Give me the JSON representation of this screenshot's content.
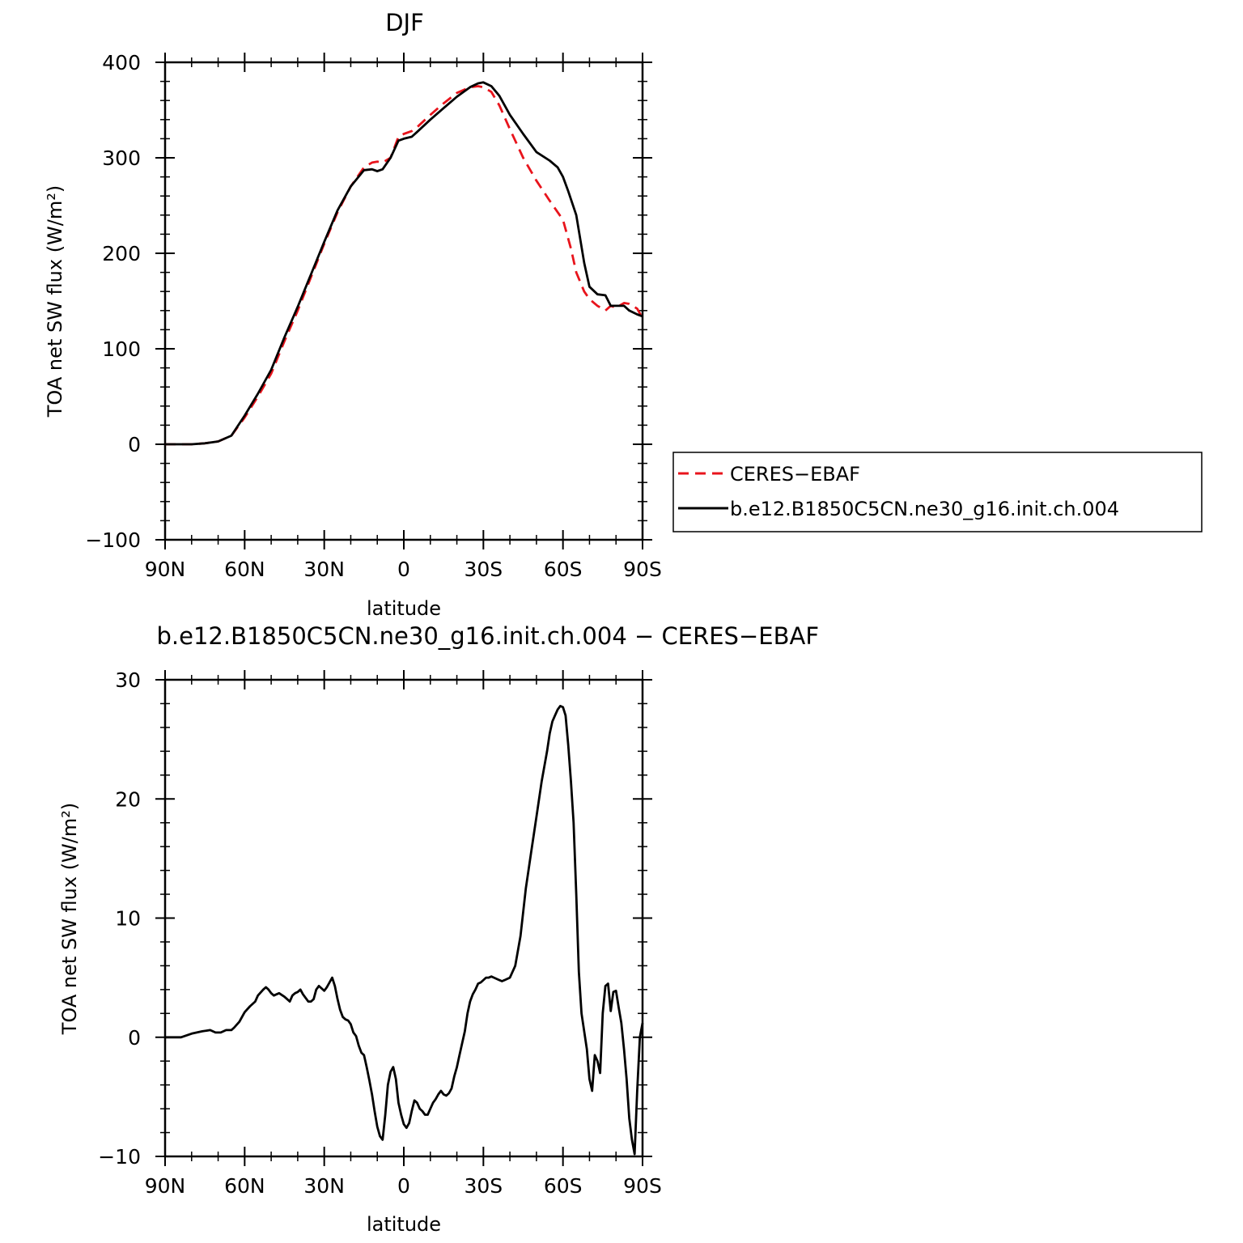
{
  "chart_data": [
    {
      "type": "line",
      "title": "DJF",
      "xlabel": "latitude",
      "ylabel": "TOA net SW flux (W/m²)",
      "xlim": [
        90,
        -90
      ],
      "ylim": [
        -100,
        400
      ],
      "xticks": [
        90,
        60,
        30,
        0,
        -30,
        -60,
        -90
      ],
      "xtick_labels": [
        "90N",
        "60N",
        "30N",
        "0",
        "30S",
        "60S",
        "90S"
      ],
      "yticks": [
        -100,
        0,
        100,
        200,
        300,
        400
      ],
      "ytick_labels": [
        "−100",
        "0",
        "100",
        "200",
        "300",
        "400"
      ],
      "legend_position": "right",
      "series": [
        {
          "name": "CERES−EBAF",
          "color": "#e8141c",
          "dash": "dashed",
          "x": [
            90,
            85,
            80,
            75,
            70,
            65,
            60,
            55,
            50,
            45,
            40,
            35,
            30,
            25,
            20,
            15,
            12,
            10,
            8,
            5,
            2,
            0,
            -3,
            -5,
            -10,
            -15,
            -20,
            -25,
            -28,
            -30,
            -33,
            -36,
            -40,
            -45,
            -50,
            -55,
            -60,
            -63,
            -65,
            -68,
            -70,
            -73,
            -76,
            -78,
            -80,
            -83,
            -85,
            -88,
            -90
          ],
          "y": [
            0,
            0,
            0,
            1,
            3,
            9,
            28,
            50,
            74,
            108,
            140,
            175,
            210,
            243,
            270,
            290,
            295,
            296,
            295,
            300,
            322,
            325,
            328,
            332,
            345,
            357,
            368,
            374,
            375,
            374,
            369,
            355,
            330,
            300,
            276,
            255,
            235,
            205,
            180,
            160,
            152,
            145,
            140,
            145,
            143,
            148,
            147,
            142,
            132
          ]
        },
        {
          "name": "b.e12.B1850C5CN.ne30_g16.init.ch.004",
          "color": "#000000",
          "dash": "solid",
          "x": [
            90,
            85,
            80,
            75,
            70,
            65,
            60,
            55,
            50,
            45,
            40,
            35,
            30,
            25,
            20,
            15,
            12,
            10,
            8,
            5,
            2,
            0,
            -3,
            -5,
            -10,
            -15,
            -20,
            -25,
            -28,
            -30,
            -33,
            -36,
            -40,
            -45,
            -50,
            -55,
            -58,
            -60,
            -62,
            -65,
            -68,
            -70,
            -73,
            -76,
            -78,
            -80,
            -83,
            -85,
            -88,
            -90
          ],
          "y": [
            0,
            0,
            0,
            1,
            3,
            9,
            30,
            53,
            78,
            112,
            144,
            178,
            212,
            245,
            270,
            287,
            288,
            286,
            288,
            300,
            318,
            320,
            322,
            327,
            340,
            352,
            364,
            374,
            378,
            379,
            375,
            365,
            345,
            325,
            306,
            297,
            290,
            280,
            265,
            240,
            190,
            165,
            157,
            156,
            145,
            145,
            145,
            140,
            136,
            134
          ]
        }
      ]
    },
    {
      "type": "line",
      "title": "b.e12.B1850C5CN.ne30_g16.init.ch.004 − CERES−EBAF",
      "xlabel": "latitude",
      "ylabel": "TOA net SW flux (W/m²)",
      "xlim": [
        90,
        -90
      ],
      "ylim": [
        -10,
        30
      ],
      "xticks": [
        90,
        60,
        30,
        0,
        -30,
        -60,
        -90
      ],
      "xtick_labels": [
        "90N",
        "60N",
        "30N",
        "0",
        "30S",
        "60S",
        "90S"
      ],
      "yticks": [
        -10,
        0,
        10,
        20,
        30
      ],
      "ytick_labels": [
        "−10",
        "0",
        "10",
        "20",
        "30"
      ],
      "series": [
        {
          "color": "#000000",
          "dash": "solid",
          "x": [
            90,
            84,
            80,
            76,
            73,
            71,
            69,
            67,
            65,
            64,
            62,
            60,
            58,
            56,
            55,
            53,
            52,
            51,
            50,
            49,
            48,
            47,
            45,
            43,
            42,
            41,
            40,
            39,
            38,
            37,
            36,
            35,
            34,
            33,
            32,
            31,
            30,
            29,
            28,
            27,
            26,
            25,
            24,
            23,
            22,
            21,
            20,
            19,
            18,
            17,
            16,
            15,
            14,
            13,
            12,
            11,
            10,
            9,
            8,
            7,
            6,
            5,
            4,
            3,
            2,
            1,
            0,
            -1,
            -2,
            -3,
            -4,
            -5,
            -6,
            -7,
            -8,
            -9,
            -10,
            -11,
            -12,
            -13,
            -14,
            -15,
            -16,
            -17,
            -18,
            -19,
            -20,
            -21,
            -22,
            -23,
            -24,
            -25,
            -26,
            -27,
            -28,
            -29,
            -30,
            -31,
            -32,
            -33,
            -34,
            -35,
            -36,
            -37,
            -38,
            -39,
            -40,
            -42,
            -44,
            -46,
            -48,
            -50,
            -52,
            -54,
            -55,
            -56,
            -57,
            -58,
            -59,
            -60,
            -61,
            -62,
            -63,
            -64,
            -65,
            -66,
            -67,
            -68,
            -69,
            -70,
            -71,
            -72,
            -73,
            -74,
            -75,
            -76,
            -77,
            -78,
            -79,
            -80,
            -81,
            -82,
            -83,
            -84,
            -85,
            -86,
            -87,
            -88,
            -89,
            -90
          ],
          "y": [
            0,
            0,
            0.3,
            0.5,
            0.6,
            0.4,
            0.4,
            0.6,
            0.6,
            0.8,
            1.3,
            2.1,
            2.6,
            3.0,
            3.5,
            4.0,
            4.2,
            4.0,
            3.7,
            3.5,
            3.6,
            3.7,
            3.4,
            3.0,
            3.5,
            3.7,
            3.8,
            4.0,
            3.6,
            3.3,
            3.0,
            3.0,
            3.2,
            4.0,
            4.3,
            4.1,
            3.9,
            4.2,
            4.6,
            5.0,
            4.3,
            3.2,
            2.3,
            1.7,
            1.5,
            1.4,
            1.1,
            0.4,
            0.1,
            -0.7,
            -1.3,
            -1.5,
            -2.5,
            -3.6,
            -4.8,
            -6.2,
            -7.5,
            -8.3,
            -8.6,
            -6.5,
            -4.0,
            -2.9,
            -2.5,
            -3.5,
            -5.5,
            -6.5,
            -7.3,
            -7.6,
            -7.2,
            -6.2,
            -5.3,
            -5.5,
            -6.0,
            -6.2,
            -6.5,
            -6.5,
            -6.0,
            -5.5,
            -5.2,
            -4.8,
            -4.5,
            -4.8,
            -4.9,
            -4.7,
            -4.3,
            -3.3,
            -2.5,
            -1.5,
            -0.5,
            0.5,
            2.0,
            3.0,
            3.6,
            4.0,
            4.5,
            4.6,
            4.8,
            5.0,
            5.0,
            5.1,
            5.0,
            4.9,
            4.8,
            4.7,
            4.8,
            4.9,
            5.0,
            6.0,
            8.5,
            12.5,
            15.5,
            18.5,
            21.5,
            24.0,
            25.5,
            26.5,
            27.0,
            27.5,
            27.8,
            27.7,
            27.0,
            24.5,
            21.5,
            18.0,
            12.0,
            5.5,
            2.0,
            0.5,
            -1.0,
            -3.5,
            -4.5,
            -1.5,
            -2.0,
            -3.0,
            2.0,
            4.3,
            4.5,
            2.2,
            3.8,
            3.9,
            2.5,
            1.2,
            -1.0,
            -3.5,
            -6.8,
            -8.6,
            -9.8,
            -4.5,
            0.0,
            1.2
          ]
        }
      ]
    }
  ]
}
